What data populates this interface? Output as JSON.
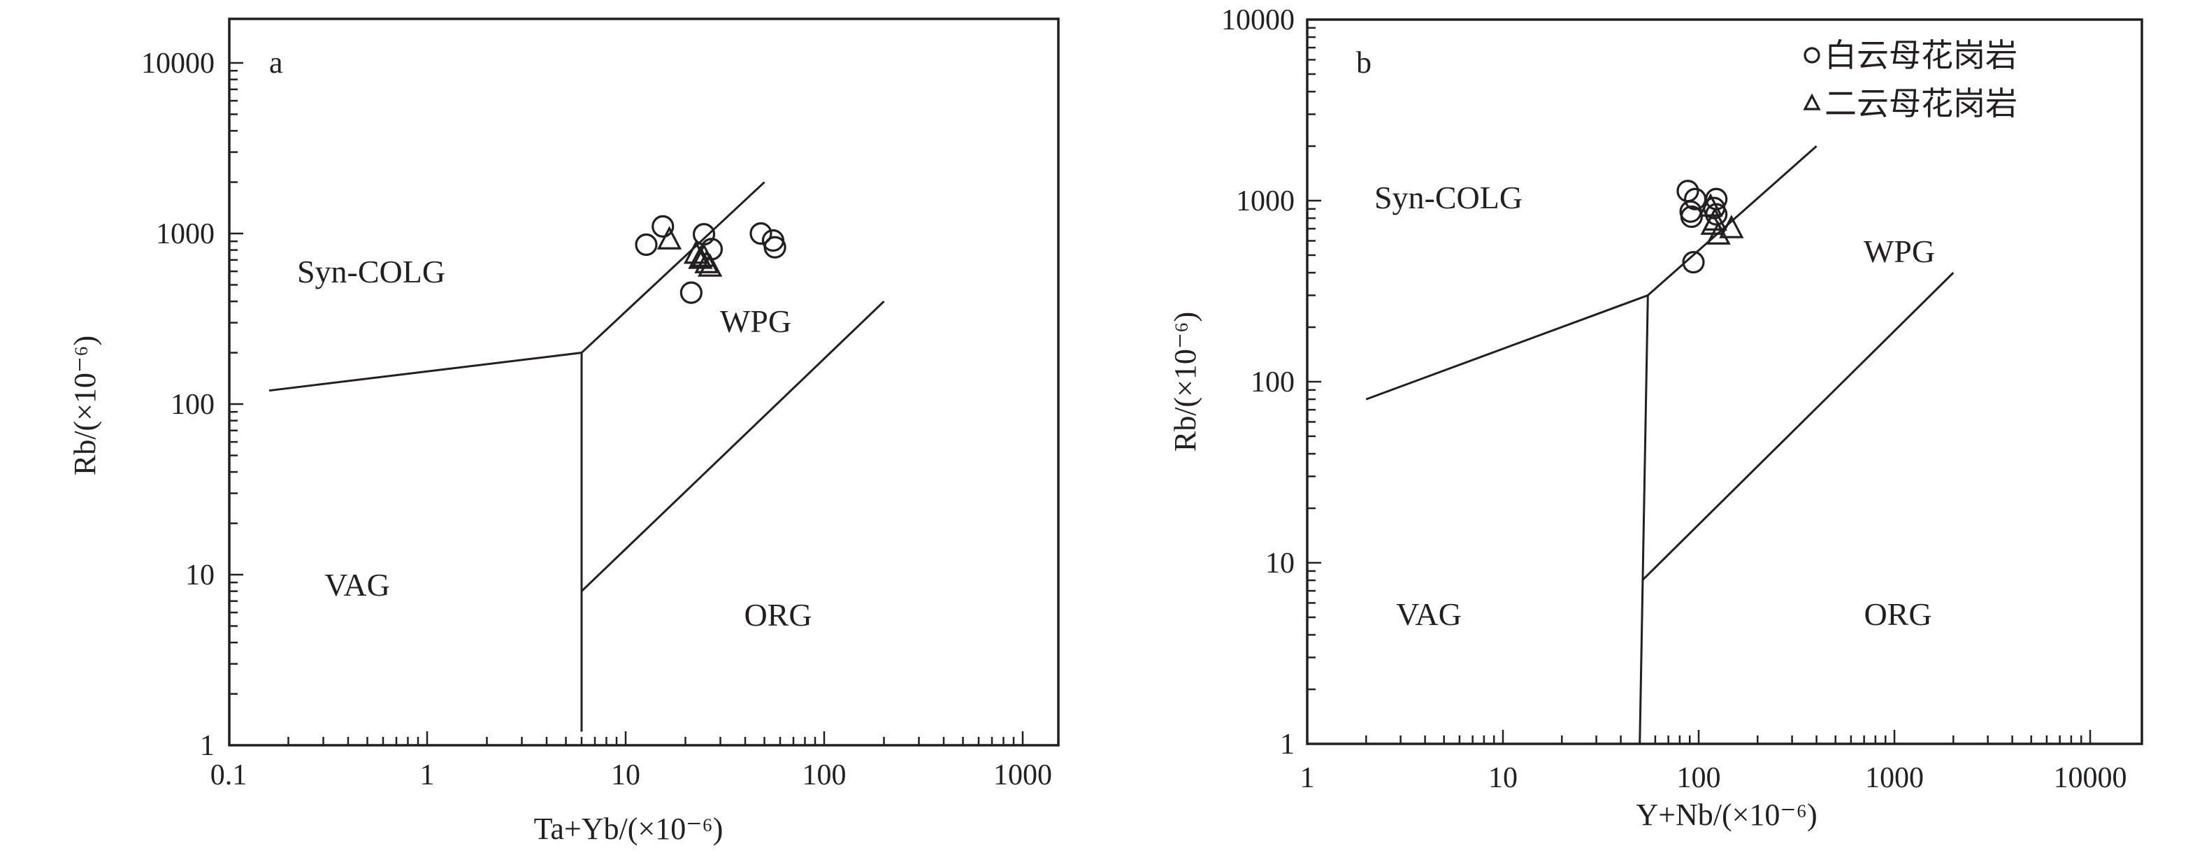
{
  "chart_data": [
    {
      "panel": "a",
      "type": "scatter",
      "xlabel": "Ta+Yb/(×10⁻⁶)",
      "ylabel": "Rb/(×10⁻⁶)",
      "xscale": "log",
      "yscale": "log",
      "xlim": [
        0.1,
        1500
      ],
      "ylim": [
        1,
        18000
      ],
      "xticks": [
        "0.1",
        "1",
        "10",
        "100",
        "1000"
      ],
      "yticks": [
        "1",
        "10",
        "100",
        "1000",
        "10000"
      ],
      "fields": [
        "Syn-COLG",
        "WPG",
        "VAG",
        "ORG"
      ],
      "boundaries": [
        [
          [
            0.16,
            120
          ],
          [
            6,
            200
          ]
        ],
        [
          [
            6,
            200
          ],
          [
            6,
            1.2
          ]
        ],
        [
          [
            6,
            200
          ],
          [
            50,
            2000
          ]
        ],
        [
          [
            6,
            8
          ],
          [
            200,
            400
          ]
        ]
      ],
      "series": [
        {
          "name": "白云母花岗岩",
          "marker": "circle",
          "x": [
            15.4,
            12.7,
            24.8,
            27.1,
            21.4,
            48,
            55.3,
            56.5
          ],
          "y": [
            1100,
            860,
            990,
            810,
            450,
            1000,
            910,
            830
          ]
        },
        {
          "name": "二云母花岗岩",
          "marker": "triangle",
          "x": [
            16.6,
            22.6,
            23.8,
            24.8,
            25.6,
            26.6
          ],
          "y": [
            910,
            750,
            700,
            720,
            660,
            630
          ]
        }
      ]
    },
    {
      "panel": "b",
      "type": "scatter",
      "xlabel": "Y+Nb/(×10⁻⁶)",
      "ylabel": "Rb/(×10⁻⁶)",
      "xscale": "log",
      "yscale": "log",
      "xlim": [
        1,
        18000
      ],
      "ylim": [
        1,
        10000
      ],
      "xticks": [
        "1",
        "10",
        "100",
        "1000",
        "10000"
      ],
      "yticks": [
        "1",
        "10",
        "100",
        "1000",
        "10000"
      ],
      "fields": [
        "Syn-COLG",
        "WPG",
        "VAG",
        "ORG"
      ],
      "legend": {
        "position": "top-right",
        "entries": [
          "白云母花岗岩",
          "二云母花岗岩"
        ]
      },
      "boundaries": [
        [
          [
            2,
            80
          ],
          [
            55,
            300
          ]
        ],
        [
          [
            55,
            300
          ],
          [
            400,
            2000
          ]
        ],
        [
          [
            55,
            300
          ],
          [
            50,
            1
          ]
        ],
        [
          [
            51.5,
            8
          ],
          [
            2000,
            400
          ]
        ]
      ],
      "series": [
        {
          "name": "白云母花岗岩",
          "marker": "circle",
          "x": [
            88,
            96,
            123,
            91,
            92,
            120,
            123,
            94
          ],
          "y": [
            1130,
            1020,
            1020,
            870,
            815,
            910,
            840,
            457
          ]
        },
        {
          "name": "二云母花岗岩",
          "marker": "triangle",
          "x": [
            115,
            121,
            126,
            147,
            118
          ],
          "y": [
            915,
            766,
            641,
            695,
            726
          ]
        }
      ]
    }
  ]
}
